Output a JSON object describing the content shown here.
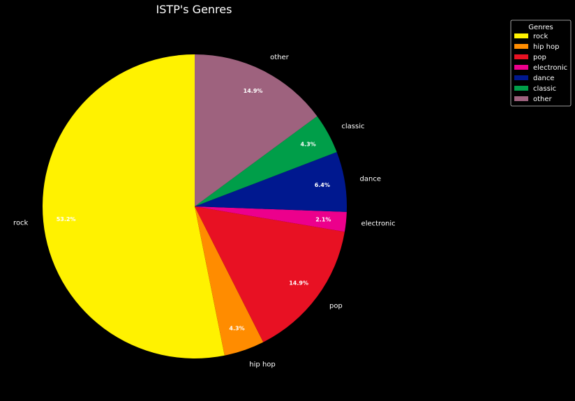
{
  "chart_data": {
    "type": "pie",
    "title": "ISTP's Genres",
    "labels": [
      "rock",
      "hip hop",
      "pop",
      "electronic",
      "dance",
      "classic",
      "other"
    ],
    "values": [
      53.2,
      4.3,
      14.9,
      2.1,
      6.4,
      4.3,
      14.9
    ],
    "percent_labels": [
      "53.2%",
      "4.3%",
      "14.9%",
      "2.1%",
      "6.4%",
      "4.3%",
      "14.9%"
    ],
    "colors": [
      "#fff200",
      "#ff8c00",
      "#e81123",
      "#ec008c",
      "#00188f",
      "#009e49",
      "#9e627e"
    ],
    "start_angle": 90,
    "direction": "counterclockwise",
    "legend": {
      "title": "Genres",
      "placement": "upper-right"
    },
    "background": "#000000"
  }
}
